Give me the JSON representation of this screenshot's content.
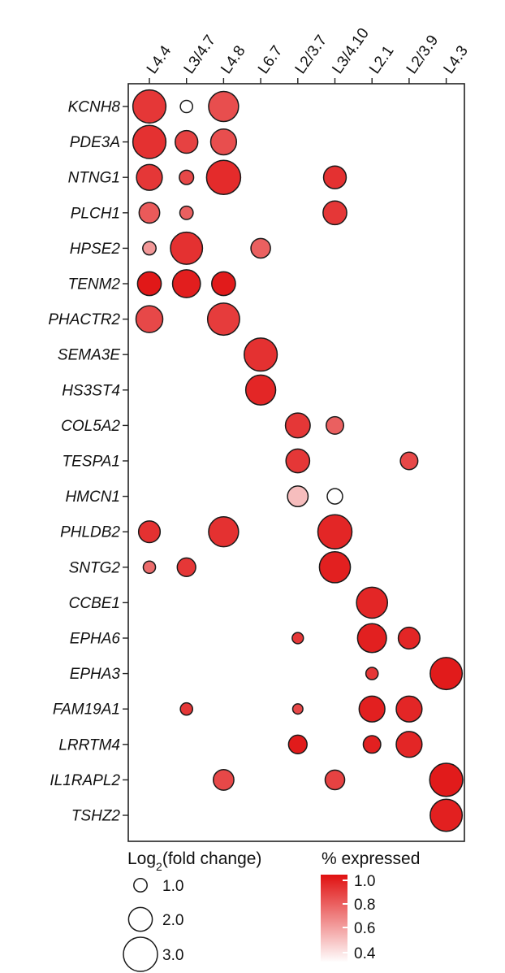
{
  "chart_data": {
    "type": "scatter",
    "subtype": "dot-plot",
    "title": "",
    "xlabel": "",
    "ylabel": "",
    "columns": [
      "L4.4",
      "L3/4.7",
      "L4.8",
      "L6.7",
      "L2/3.7",
      "L3/4.10",
      "L2.1",
      "L2/3.9",
      "L4.3"
    ],
    "genes": [
      "KCNH8",
      "PDE3A",
      "NTNG1",
      "PLCH1",
      "HPSE2",
      "TENM2",
      "PHACTR2",
      "SEMA3E",
      "HS3ST4",
      "COL5A2",
      "TESPA1",
      "HMCN1",
      "PHLDB2",
      "SNTG2",
      "CCBE1",
      "EPHA6",
      "EPHA3",
      "FAM19A1",
      "LRRTM4",
      "IL1RAPL2",
      "TSHZ2"
    ],
    "points": [
      {
        "gene": "KCNH8",
        "column": "L4.4",
        "log2fc": 2.9,
        "pct": 0.86
      },
      {
        "gene": "KCNH8",
        "column": "L3/4.7",
        "log2fc": 0.9,
        "pct": 0.33
      },
      {
        "gene": "KCNH8",
        "column": "L4.8",
        "log2fc": 2.6,
        "pct": 0.78
      },
      {
        "gene": "PDE3A",
        "column": "L4.4",
        "log2fc": 2.9,
        "pct": 0.88
      },
      {
        "gene": "PDE3A",
        "column": "L3/4.7",
        "log2fc": 1.9,
        "pct": 0.82
      },
      {
        "gene": "PDE3A",
        "column": "L4.8",
        "log2fc": 2.2,
        "pct": 0.78
      },
      {
        "gene": "NTNG1",
        "column": "L4.4",
        "log2fc": 2.2,
        "pct": 0.86
      },
      {
        "gene": "NTNG1",
        "column": "L3/4.7",
        "log2fc": 1.1,
        "pct": 0.8
      },
      {
        "gene": "NTNG1",
        "column": "L4.8",
        "log2fc": 3.0,
        "pct": 0.9
      },
      {
        "gene": "NTNG1",
        "column": "L3/4.10",
        "log2fc": 1.9,
        "pct": 0.88
      },
      {
        "gene": "PLCH1",
        "column": "L4.4",
        "log2fc": 1.7,
        "pct": 0.74
      },
      {
        "gene": "PLCH1",
        "column": "L3/4.7",
        "log2fc": 1.0,
        "pct": 0.72
      },
      {
        "gene": "PLCH1",
        "column": "L3/4.10",
        "log2fc": 2.0,
        "pct": 0.86
      },
      {
        "gene": "HPSE2",
        "column": "L4.4",
        "log2fc": 1.0,
        "pct": 0.55
      },
      {
        "gene": "HPSE2",
        "column": "L3/4.7",
        "log2fc": 2.8,
        "pct": 0.88
      },
      {
        "gene": "HPSE2",
        "column": "L6.7",
        "log2fc": 1.6,
        "pct": 0.72
      },
      {
        "gene": "TENM2",
        "column": "L4.4",
        "log2fc": 2.0,
        "pct": 0.97
      },
      {
        "gene": "TENM2",
        "column": "L3/4.7",
        "log2fc": 2.4,
        "pct": 0.95
      },
      {
        "gene": "TENM2",
        "column": "L4.8",
        "log2fc": 2.0,
        "pct": 0.96
      },
      {
        "gene": "PHACTR2",
        "column": "L4.4",
        "log2fc": 2.3,
        "pct": 0.8
      },
      {
        "gene": "PHACTR2",
        "column": "L4.8",
        "log2fc": 2.8,
        "pct": 0.84
      },
      {
        "gene": "SEMA3E",
        "column": "L6.7",
        "log2fc": 2.9,
        "pct": 0.88
      },
      {
        "gene": "HS3ST4",
        "column": "L6.7",
        "log2fc": 2.6,
        "pct": 0.92
      },
      {
        "gene": "COL5A2",
        "column": "L2/3.7",
        "log2fc": 2.1,
        "pct": 0.86
      },
      {
        "gene": "COL5A2",
        "column": "L3/4.10",
        "log2fc": 1.4,
        "pct": 0.72
      },
      {
        "gene": "TESPA1",
        "column": "L2/3.7",
        "log2fc": 2.0,
        "pct": 0.86
      },
      {
        "gene": "TESPA1",
        "column": "L2/3.9",
        "log2fc": 1.4,
        "pct": 0.8
      },
      {
        "gene": "HMCN1",
        "column": "L2/3.7",
        "log2fc": 1.7,
        "pct": 0.45
      },
      {
        "gene": "HMCN1",
        "column": "L3/4.10",
        "log2fc": 1.2,
        "pct": 0.33
      },
      {
        "gene": "PHLDB2",
        "column": "L4.4",
        "log2fc": 1.8,
        "pct": 0.88
      },
      {
        "gene": "PHLDB2",
        "column": "L4.8",
        "log2fc": 2.6,
        "pct": 0.88
      },
      {
        "gene": "PHLDB2",
        "column": "L3/4.10",
        "log2fc": 3.0,
        "pct": 0.92
      },
      {
        "gene": "SNTG2",
        "column": "L4.4",
        "log2fc": 0.9,
        "pct": 0.68
      },
      {
        "gene": "SNTG2",
        "column": "L3/4.7",
        "log2fc": 1.5,
        "pct": 0.86
      },
      {
        "gene": "SNTG2",
        "column": "L3/4.10",
        "log2fc": 2.7,
        "pct": 0.94
      },
      {
        "gene": "CCBE1",
        "column": "L2.1",
        "log2fc": 2.7,
        "pct": 0.92
      },
      {
        "gene": "EPHA6",
        "column": "L2/3.7",
        "log2fc": 0.8,
        "pct": 0.86
      },
      {
        "gene": "EPHA6",
        "column": "L2.1",
        "log2fc": 2.5,
        "pct": 0.94
      },
      {
        "gene": "EPHA6",
        "column": "L2/3.9",
        "log2fc": 1.8,
        "pct": 0.92
      },
      {
        "gene": "EPHA3",
        "column": "L2.1",
        "log2fc": 0.9,
        "pct": 0.86
      },
      {
        "gene": "EPHA3",
        "column": "L4.3",
        "log2fc": 2.8,
        "pct": 0.96
      },
      {
        "gene": "FAM19A1",
        "column": "L3/4.7",
        "log2fc": 0.9,
        "pct": 0.86
      },
      {
        "gene": "FAM19A1",
        "column": "L2/3.7",
        "log2fc": 0.7,
        "pct": 0.8
      },
      {
        "gene": "FAM19A1",
        "column": "L2.1",
        "log2fc": 2.2,
        "pct": 0.94
      },
      {
        "gene": "FAM19A1",
        "column": "L2/3.9",
        "log2fc": 2.2,
        "pct": 0.92
      },
      {
        "gene": "LRRTM4",
        "column": "L2/3.7",
        "log2fc": 1.5,
        "pct": 0.96
      },
      {
        "gene": "LRRTM4",
        "column": "L2.1",
        "log2fc": 1.4,
        "pct": 0.94
      },
      {
        "gene": "LRRTM4",
        "column": "L2/3.9",
        "log2fc": 2.2,
        "pct": 0.92
      },
      {
        "gene": "IL1RAPL2",
        "column": "L4.8",
        "log2fc": 1.7,
        "pct": 0.8
      },
      {
        "gene": "IL1RAPL2",
        "column": "L3/4.10",
        "log2fc": 1.6,
        "pct": 0.82
      },
      {
        "gene": "IL1RAPL2",
        "column": "L4.3",
        "log2fc": 2.9,
        "pct": 0.96
      },
      {
        "gene": "TSHZ2",
        "column": "L4.3",
        "log2fc": 2.8,
        "pct": 0.94
      }
    ],
    "size_legend": {
      "title": "Log2(fold change)",
      "entries": [
        {
          "label": "1.0",
          "value": 1.0
        },
        {
          "label": "2.0",
          "value": 2.0
        },
        {
          "label": "3.0",
          "value": 3.0
        }
      ]
    },
    "color_legend": {
      "title": "% expressed",
      "ticks": [
        {
          "label": "1.0",
          "value": 1.0
        },
        {
          "label": "0.8",
          "value": 0.8
        },
        {
          "label": "0.6",
          "value": 0.6
        },
        {
          "label": "0.4",
          "value": 0.4
        }
      ],
      "range": [
        0.33,
        1.0
      ],
      "color_low": "#ffffff",
      "color_high": "#e01010"
    },
    "grid": false
  }
}
